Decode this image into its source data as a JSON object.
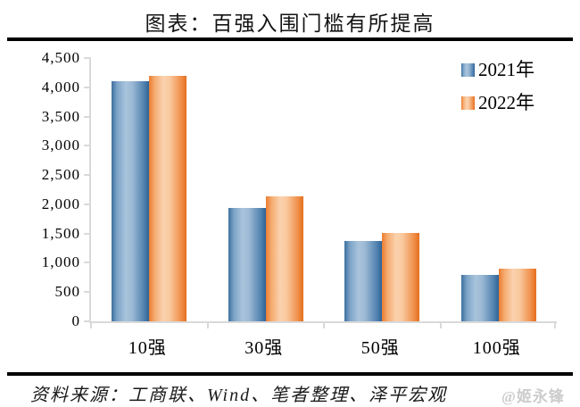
{
  "page": {
    "title": "图表：百强入围门槛有所提高",
    "source_note": "资料来源：工商联、Wind、笔者整理、泽平宏观",
    "watermark": "@姬永锋"
  },
  "chart_data": {
    "type": "bar",
    "title": "图表：百强入围门槛有所提高",
    "categories": [
      "10强",
      "30强",
      "50强",
      "100强"
    ],
    "series": [
      {
        "name": "2021年",
        "values": [
          4100,
          1930,
          1370,
          790
        ],
        "color_edge": "#2e6398",
        "color_center": "#a9c4dc"
      },
      {
        "name": "2022年",
        "values": [
          4200,
          2140,
          1510,
          900
        ],
        "color_edge": "#e56f1e",
        "color_center": "#fbd2ae"
      }
    ],
    "xlabel": "",
    "ylabel": "",
    "ylim": [
      0,
      4500
    ],
    "ytick_step": 500,
    "ytick_labels": [
      "4,500",
      "4,000",
      "3,500",
      "3,000",
      "2,500",
      "2,000",
      "1,500",
      "1,000",
      "500",
      "0"
    ],
    "grid": false,
    "legend_position": "top-right",
    "axis_color": "#d9d9d9"
  }
}
